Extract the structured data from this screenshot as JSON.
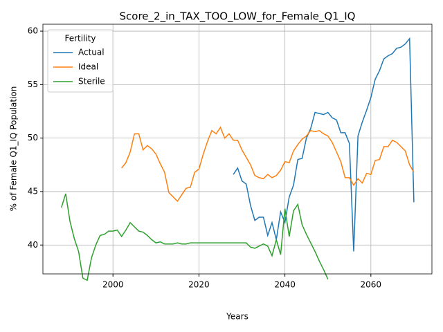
{
  "chart_data": {
    "type": "line",
    "title": "Score_2_in_TAX_TOO_LOW_for_Female_Q1_IQ",
    "xlabel": "Years",
    "ylabel": "% of Female Q1_IQ Population",
    "legend_title": "Fertility",
    "legend": "upper left",
    "grid": true,
    "xlim": [
      1983.7,
      2074.2
    ],
    "xticks": [
      2000,
      2020,
      2040,
      2060
    ],
    "ylim": [
      37.3,
      60.65
    ],
    "yticks": [
      40,
      45,
      50,
      55,
      60
    ],
    "series": [
      {
        "name": "Actual",
        "color": "#1f77b4",
        "x": [
          2028,
          2029,
          2030,
          2031,
          2032,
          2033,
          2034,
          2035,
          2036,
          2037,
          2038,
          2039,
          2040,
          2041,
          2042,
          2043,
          2044,
          2045,
          2046,
          2047,
          2048,
          2049,
          2050,
          2051,
          2052,
          2053,
          2054,
          2055,
          2056,
          2057,
          2058,
          2059,
          2060,
          2061,
          2062,
          2063,
          2064,
          2065,
          2066,
          2067,
          2068,
          2069,
          2070
        ],
        "values": [
          46.6,
          47.2,
          46.0,
          45.7,
          43.7,
          42.3,
          42.6,
          42.6,
          40.9,
          42.1,
          40.5,
          43.1,
          42.1,
          44.5,
          45.6,
          48.0,
          48.1,
          50.0,
          50.9,
          52.4,
          52.3,
          52.2,
          52.4,
          51.9,
          51.7,
          50.5,
          50.5,
          49.5,
          39.4,
          50.2,
          51.5,
          52.6,
          53.8,
          55.5,
          56.3,
          57.4,
          57.7,
          57.9,
          58.4,
          58.5,
          58.8,
          59.3,
          44.0
        ]
      },
      {
        "name": "Ideal",
        "color": "#ff7f0e",
        "x": [
          2002,
          2003,
          2004,
          2005,
          2006,
          2007,
          2008,
          2009,
          2010,
          2011,
          2012,
          2013,
          2014,
          2015,
          2016,
          2017,
          2018,
          2019,
          2020,
          2021,
          2022,
          2023,
          2024,
          2025,
          2026,
          2027,
          2028,
          2029,
          2030,
          2031,
          2032,
          2033,
          2034,
          2035,
          2036,
          2037,
          2038,
          2039,
          2040,
          2041,
          2042,
          2043,
          2044,
          2045,
          2046,
          2047,
          2048,
          2049,
          2050,
          2051,
          2052,
          2053,
          2054,
          2055,
          2056,
          2057,
          2058,
          2059,
          2060,
          2061,
          2062,
          2063,
          2064,
          2065,
          2066,
          2067,
          2068,
          2069,
          2070
        ],
        "values": [
          47.2,
          47.7,
          48.7,
          50.4,
          50.4,
          48.9,
          49.3,
          49.0,
          48.5,
          47.6,
          46.8,
          44.9,
          44.5,
          44.1,
          44.7,
          45.3,
          45.4,
          46.8,
          47.1,
          48.5,
          49.7,
          50.7,
          50.4,
          51.0,
          50.0,
          50.4,
          49.8,
          49.8,
          48.9,
          48.2,
          47.5,
          46.5,
          46.3,
          46.2,
          46.6,
          46.3,
          46.5,
          47.0,
          47.8,
          47.7,
          48.8,
          49.4,
          49.9,
          50.2,
          50.7,
          50.6,
          50.7,
          50.4,
          50.2,
          49.6,
          48.7,
          47.8,
          46.3,
          46.3,
          45.6,
          46.2,
          45.8,
          46.7,
          46.6,
          47.9,
          48.0,
          49.2,
          49.2,
          49.8,
          49.6,
          49.2,
          48.8,
          47.5,
          46.8
        ]
      },
      {
        "name": "Sterile",
        "color": "#2ca02c",
        "x": [
          1988,
          1989,
          1990,
          1991,
          1992,
          1993,
          1994,
          1995,
          1996,
          1997,
          1998,
          1999,
          2000,
          2001,
          2002,
          2003,
          2004,
          2005,
          2006,
          2007,
          2008,
          2009,
          2010,
          2011,
          2012,
          2013,
          2014,
          2015,
          2016,
          2017,
          2018,
          2019,
          2020,
          2021,
          2022,
          2023,
          2024,
          2025,
          2026,
          2027,
          2028,
          2029,
          2030,
          2031,
          2032,
          2033,
          2034,
          2035,
          2036,
          2037,
          2038,
          2039,
          2040,
          2041,
          2042,
          2043,
          2044,
          2045,
          2046,
          2047,
          2048,
          2049,
          2050
        ],
        "values": [
          43.5,
          44.8,
          42.2,
          40.6,
          39.4,
          36.9,
          36.7,
          38.8,
          40.0,
          40.9,
          41.0,
          41.3,
          41.3,
          41.4,
          40.8,
          41.4,
          42.1,
          41.7,
          41.3,
          41.2,
          40.9,
          40.5,
          40.2,
          40.3,
          40.1,
          40.1,
          40.1,
          40.2,
          40.1,
          40.1,
          40.2,
          40.2,
          40.2,
          40.2,
          40.2,
          40.2,
          40.2,
          40.2,
          40.2,
          40.2,
          40.2,
          40.2,
          40.2,
          40.2,
          39.8,
          39.7,
          39.9,
          40.1,
          39.9,
          39.0,
          40.5,
          39.1,
          43.4,
          40.8,
          43.2,
          43.8,
          41.9,
          41.0,
          40.2,
          39.4,
          38.5,
          37.7,
          36.8
        ]
      }
    ]
  }
}
